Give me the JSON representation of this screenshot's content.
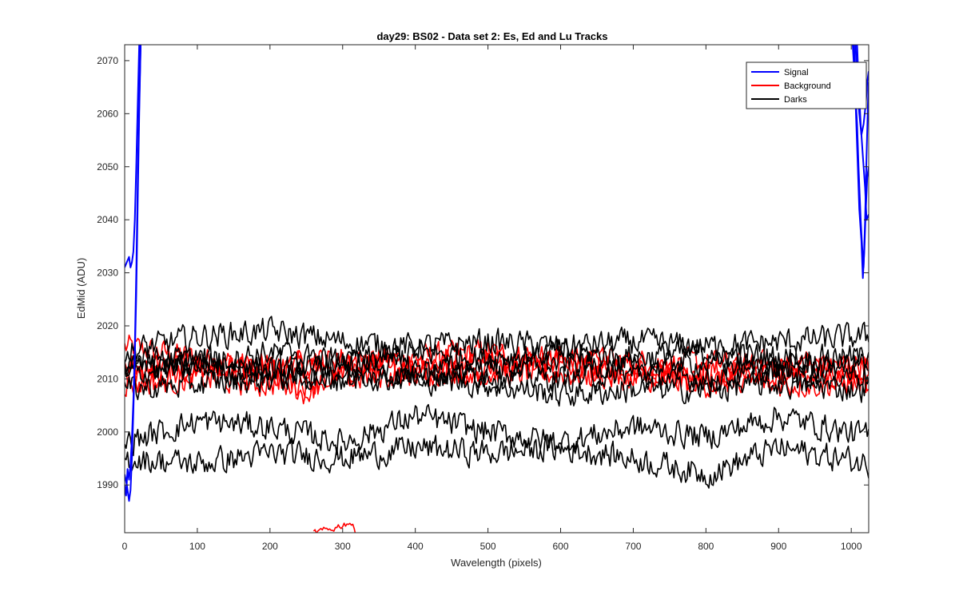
{
  "chart_data": {
    "type": "line",
    "title": "day29: BS02 - Data set 2: Es, Ed and Lu Tracks",
    "xlabel": "Wavelength (pixels)",
    "ylabel": "EdMid (ADU)",
    "xlim": [
      0,
      1024
    ],
    "ylim": [
      1981,
      2073
    ],
    "xticks": [
      0,
      100,
      200,
      300,
      400,
      500,
      600,
      700,
      800,
      900,
      1000
    ],
    "yticks": [
      1990,
      2000,
      2010,
      2020,
      2030,
      2040,
      2050,
      2060,
      2070
    ],
    "grid": false,
    "legend": {
      "location": "top-right",
      "entries": [
        "Signal",
        "Background",
        "Darks"
      ]
    },
    "colors": {
      "Signal": "#0000ff",
      "Background": "#ff0000",
      "Darks": "#000000"
    },
    "series": [
      {
        "name": "Signal",
        "group": "Signal",
        "points": [
          [
            0,
            2031
          ],
          [
            3,
            2032
          ],
          [
            6,
            2033
          ],
          [
            8,
            2031
          ],
          [
            10,
            2032
          ],
          [
            12,
            2034
          ],
          [
            14,
            2040
          ],
          [
            16,
            2050
          ],
          [
            18,
            2062
          ],
          [
            20,
            2073
          ]
        ]
      },
      {
        "name": "Signal",
        "group": "Signal",
        "points": [
          [
            0,
            1990
          ],
          [
            2,
            1988
          ],
          [
            4,
            1993
          ],
          [
            6,
            1991
          ],
          [
            8,
            1994
          ],
          [
            10,
            1999
          ],
          [
            12,
            2006
          ],
          [
            14,
            2016
          ],
          [
            16,
            2030
          ],
          [
            18,
            2048
          ],
          [
            20,
            2062
          ],
          [
            22,
            2073
          ]
        ]
      },
      {
        "name": "Signal",
        "group": "Signal",
        "points": [
          [
            0,
            1992
          ],
          [
            3,
            1990
          ],
          [
            6,
            1987
          ],
          [
            8,
            1989
          ],
          [
            10,
            1995
          ],
          [
            12,
            2004
          ],
          [
            14,
            2014
          ],
          [
            16,
            2026
          ],
          [
            18,
            2044
          ],
          [
            20,
            2060
          ],
          [
            22,
            2073
          ]
        ]
      },
      {
        "name": "Signal",
        "group": "Signal",
        "points": [
          [
            1002,
            2073
          ],
          [
            1005,
            2066
          ],
          [
            1008,
            2058
          ],
          [
            1010,
            2050
          ],
          [
            1013,
            2040
          ],
          [
            1015,
            2035
          ],
          [
            1017,
            2031
          ],
          [
            1019,
            2040
          ],
          [
            1021,
            2052
          ],
          [
            1023,
            2062
          ],
          [
            1024,
            2066
          ]
        ]
      },
      {
        "name": "Signal",
        "group": "Signal",
        "points": [
          [
            1004,
            2073
          ],
          [
            1006,
            2062
          ],
          [
            1009,
            2050
          ],
          [
            1011,
            2042
          ],
          [
            1014,
            2036
          ],
          [
            1016,
            2029
          ],
          [
            1018,
            2034
          ],
          [
            1020,
            2042
          ],
          [
            1022,
            2048
          ],
          [
            1024,
            2050
          ]
        ]
      },
      {
        "name": "Signal",
        "group": "Signal",
        "points": [
          [
            1006,
            2073
          ],
          [
            1008,
            2066
          ],
          [
            1011,
            2060
          ],
          [
            1014,
            2056
          ],
          [
            1017,
            2058
          ],
          [
            1020,
            2062
          ],
          [
            1022,
            2066
          ],
          [
            1024,
            2068
          ]
        ]
      },
      {
        "name": "Signal",
        "group": "Signal",
        "points": [
          [
            1008,
            2073
          ],
          [
            1010,
            2066
          ],
          [
            1013,
            2058
          ],
          [
            1016,
            2052
          ],
          [
            1019,
            2046
          ],
          [
            1021,
            2040
          ],
          [
            1024,
            2041
          ]
        ]
      }
    ],
    "darks": [
      {
        "name": "Darks",
        "group": "Darks",
        "approx_points": [
          [
            0,
            2015
          ],
          [
            100,
            2018
          ],
          [
            200,
            2019
          ],
          [
            300,
            2017
          ],
          [
            400,
            2016
          ],
          [
            500,
            2017
          ],
          [
            600,
            2016
          ],
          [
            700,
            2017
          ],
          [
            800,
            2016
          ],
          [
            900,
            2017
          ],
          [
            1024,
            2018
          ]
        ]
      },
      {
        "name": "Darks",
        "group": "Darks",
        "approx_points": [
          [
            0,
            2013
          ],
          [
            100,
            2014
          ],
          [
            200,
            2012
          ],
          [
            300,
            2013
          ],
          [
            400,
            2015
          ],
          [
            500,
            2014
          ],
          [
            600,
            2015
          ],
          [
            700,
            2014
          ],
          [
            800,
            2015
          ],
          [
            900,
            2014
          ],
          [
            1024,
            2014
          ]
        ]
      },
      {
        "name": "Darks",
        "group": "Darks",
        "approx_points": [
          [
            0,
            2012
          ],
          [
            100,
            2013
          ],
          [
            200,
            2015
          ],
          [
            300,
            2013
          ],
          [
            400,
            2012
          ],
          [
            500,
            2012
          ],
          [
            600,
            2013
          ],
          [
            700,
            2012
          ],
          [
            800,
            2013
          ],
          [
            900,
            2012
          ],
          [
            1024,
            2013
          ]
        ]
      },
      {
        "name": "Darks",
        "group": "Darks",
        "approx_points": [
          [
            0,
            2011
          ],
          [
            100,
            2012
          ],
          [
            200,
            2011
          ],
          [
            300,
            2010
          ],
          [
            400,
            2011
          ],
          [
            500,
            2011
          ],
          [
            600,
            2010
          ],
          [
            700,
            2011
          ],
          [
            800,
            2010
          ],
          [
            900,
            2011
          ],
          [
            1024,
            2011
          ]
        ]
      },
      {
        "name": "Darks",
        "group": "Darks",
        "approx_points": [
          [
            0,
            2008
          ],
          [
            100,
            2009
          ],
          [
            200,
            2010
          ],
          [
            300,
            2011
          ],
          [
            400,
            2010
          ],
          [
            500,
            2009
          ],
          [
            600,
            2007
          ],
          [
            700,
            2008
          ],
          [
            800,
            2008
          ],
          [
            900,
            2009
          ],
          [
            1024,
            2008
          ]
        ]
      },
      {
        "name": "Darks",
        "group": "Darks",
        "approx_points": [
          [
            0,
            1998
          ],
          [
            100,
            2002
          ],
          [
            200,
            2001
          ],
          [
            300,
            1998
          ],
          [
            400,
            2003
          ],
          [
            500,
            2000
          ],
          [
            600,
            1998
          ],
          [
            700,
            2001
          ],
          [
            800,
            1999
          ],
          [
            900,
            2003
          ],
          [
            1024,
            1999
          ]
        ]
      },
      {
        "name": "Darks",
        "group": "Darks",
        "approx_points": [
          [
            0,
            1995
          ],
          [
            100,
            1994
          ],
          [
            200,
            1996
          ],
          [
            300,
            1995
          ],
          [
            400,
            1997
          ],
          [
            500,
            1996
          ],
          [
            600,
            1997
          ],
          [
            700,
            1995
          ],
          [
            800,
            1992
          ],
          [
            900,
            1997
          ],
          [
            1024,
            1994
          ]
        ]
      }
    ],
    "background": [
      {
        "name": "Background",
        "group": "Background",
        "approx_points": [
          [
            0,
            2016
          ],
          [
            100,
            2014
          ],
          [
            200,
            2012
          ],
          [
            300,
            2013
          ],
          [
            400,
            2014
          ],
          [
            500,
            2015
          ],
          [
            600,
            2013
          ],
          [
            700,
            2012
          ],
          [
            800,
            2011
          ],
          [
            900,
            2013
          ],
          [
            1024,
            2012
          ]
        ]
      },
      {
        "name": "Background",
        "group": "Background",
        "approx_points": [
          [
            0,
            2012
          ],
          [
            100,
            2013
          ],
          [
            200,
            2010
          ],
          [
            250,
            2007
          ],
          [
            300,
            2011
          ],
          [
            400,
            2013
          ],
          [
            500,
            2014
          ],
          [
            600,
            2014
          ],
          [
            700,
            2013
          ],
          [
            800,
            2013
          ],
          [
            900,
            2012
          ],
          [
            1024,
            2013
          ]
        ]
      },
      {
        "name": "Background",
        "group": "Background",
        "approx_points": [
          [
            0,
            2011
          ],
          [
            100,
            2011
          ],
          [
            200,
            2012
          ],
          [
            300,
            2014
          ],
          [
            400,
            2012
          ],
          [
            500,
            2011
          ],
          [
            600,
            2011
          ],
          [
            700,
            2010
          ],
          [
            800,
            2009
          ],
          [
            900,
            2011
          ],
          [
            1024,
            2010
          ]
        ]
      },
      {
        "name": "Background",
        "group": "Background",
        "approx_points": [
          [
            0,
            2009
          ],
          [
            100,
            2010
          ],
          [
            200,
            2009
          ],
          [
            300,
            2010
          ],
          [
            400,
            2011
          ],
          [
            500,
            2012
          ],
          [
            600,
            2012
          ],
          [
            700,
            2011
          ],
          [
            800,
            2010
          ],
          [
            900,
            2009
          ],
          [
            1024,
            2009
          ]
        ]
      },
      {
        "name": "Background",
        "group": "Background",
        "approx_points": [
          [
            260,
            1981
          ],
          [
            280,
            1981.5
          ],
          [
            290,
            1982
          ],
          [
            300,
            1982.5
          ],
          [
            310,
            1983
          ],
          [
            318,
            1981
          ]
        ]
      }
    ]
  }
}
